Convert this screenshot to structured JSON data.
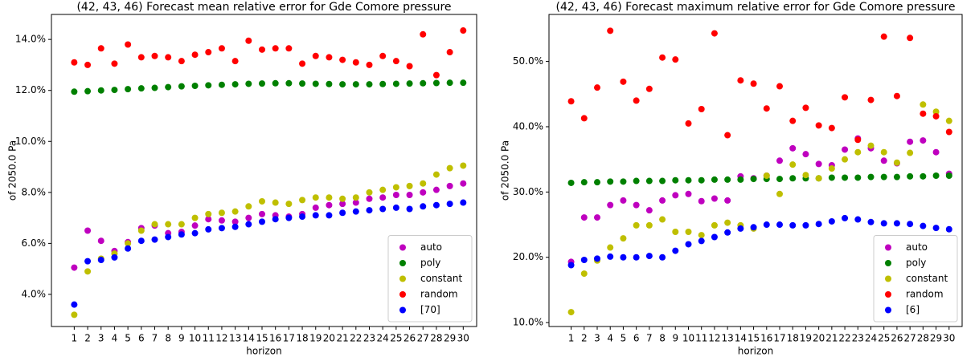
{
  "chart_data": [
    {
      "type": "scatter",
      "title": "(42, 43, 46) Forecast mean relative error for Gde Comore pressure",
      "xlabel": "horizon",
      "ylabel": "of 2050.0 Pa",
      "legend": "lower right",
      "x": [
        1,
        2,
        3,
        4,
        5,
        6,
        7,
        8,
        9,
        10,
        11,
        12,
        13,
        14,
        15,
        16,
        17,
        18,
        19,
        20,
        21,
        22,
        23,
        24,
        25,
        26,
        27,
        28,
        29,
        30
      ],
      "xlim": [
        -0.7,
        31
      ],
      "xticks": [
        1,
        2,
        3,
        4,
        5,
        6,
        7,
        8,
        9,
        10,
        11,
        12,
        13,
        14,
        15,
        16,
        17,
        18,
        19,
        20,
        21,
        22,
        23,
        24,
        25,
        26,
        27,
        28,
        29,
        30
      ],
      "ylim": [
        2.74,
        14.98
      ],
      "yticks": [
        {
          "value": 4,
          "label": "4.0%"
        },
        {
          "value": 6,
          "label": "6.0%"
        },
        {
          "value": 8,
          "label": "8.0%"
        },
        {
          "value": 10,
          "label": "10.0%"
        },
        {
          "value": 12,
          "label": "12.0%"
        },
        {
          "value": 14,
          "label": "14.0%"
        }
      ],
      "series": [
        {
          "name": "auto",
          "color": "#bf00bf",
          "values": [
            5.05,
            6.5,
            6.1,
            5.7,
            6.05,
            6.6,
            6.7,
            6.4,
            6.45,
            6.7,
            6.95,
            6.9,
            6.85,
            7.0,
            7.15,
            7.1,
            7.05,
            7.15,
            7.4,
            7.5,
            7.55,
            7.6,
            7.75,
            7.8,
            7.9,
            7.9,
            8.0,
            8.1,
            8.25,
            8.35
          ]
        },
        {
          "name": "poly",
          "color": "#008000",
          "values": [
            11.95,
            11.97,
            12.0,
            12.02,
            12.05,
            12.08,
            12.1,
            12.13,
            12.16,
            12.18,
            12.2,
            12.22,
            12.24,
            12.26,
            12.27,
            12.28,
            12.28,
            12.27,
            12.26,
            12.25,
            12.24,
            12.24,
            12.24,
            12.25,
            12.26,
            12.27,
            12.28,
            12.29,
            12.3,
            12.3
          ]
        },
        {
          "name": "constant",
          "color": "#bfbf00",
          "values": [
            3.2,
            4.9,
            5.4,
            5.6,
            6.0,
            6.5,
            6.75,
            6.75,
            6.75,
            7.0,
            7.15,
            7.2,
            7.25,
            7.45,
            7.65,
            7.6,
            7.55,
            7.7,
            7.8,
            7.8,
            7.75,
            7.8,
            8.0,
            8.1,
            8.2,
            8.25,
            8.35,
            8.7,
            8.95,
            9.05
          ]
        },
        {
          "name": "random",
          "color": "#ff0000",
          "values": [
            13.1,
            13.0,
            13.65,
            13.05,
            13.8,
            13.3,
            13.35,
            13.3,
            13.15,
            13.4,
            13.5,
            13.65,
            13.15,
            13.95,
            13.6,
            13.65,
            13.65,
            13.05,
            13.35,
            13.3,
            13.2,
            13.1,
            13.0,
            13.35,
            13.15,
            12.95,
            14.2,
            12.6,
            13.5,
            14.35
          ]
        },
        {
          "name": "[70]",
          "color": "#0000ff",
          "values": [
            3.6,
            5.3,
            5.35,
            5.45,
            5.8,
            6.1,
            6.15,
            6.25,
            6.35,
            6.4,
            6.55,
            6.6,
            6.65,
            6.75,
            6.85,
            6.95,
            7.0,
            7.05,
            7.1,
            7.1,
            7.2,
            7.25,
            7.3,
            7.35,
            7.4,
            7.35,
            7.45,
            7.5,
            7.55,
            7.6
          ]
        }
      ]
    },
    {
      "type": "scatter",
      "title": "(42, 43, 46) Forecast maximum relative error for Gde Comore pressure",
      "xlabel": "horizon",
      "ylabel": "of 2050.0 Pa",
      "legend": "lower right",
      "x": [
        1,
        2,
        3,
        4,
        5,
        6,
        7,
        8,
        9,
        10,
        11,
        12,
        13,
        14,
        15,
        16,
        17,
        18,
        19,
        20,
        21,
        22,
        23,
        24,
        25,
        26,
        27,
        28,
        29,
        30
      ],
      "xlim": [
        -0.7,
        31
      ],
      "xticks": [
        1,
        2,
        3,
        4,
        5,
        6,
        7,
        8,
        9,
        10,
        11,
        12,
        13,
        14,
        15,
        16,
        17,
        18,
        19,
        20,
        21,
        22,
        23,
        24,
        25,
        26,
        27,
        28,
        29,
        30
      ],
      "ylim": [
        9.4,
        57.2
      ],
      "yticks": [
        {
          "value": 10,
          "label": "10.0%"
        },
        {
          "value": 20,
          "label": "20.0%"
        },
        {
          "value": 30,
          "label": "30.0%"
        },
        {
          "value": 40,
          "label": "40.0%"
        },
        {
          "value": 50,
          "label": "50.0%"
        }
      ],
      "series": [
        {
          "name": "auto",
          "color": "#bf00bf",
          "values": [
            19.3,
            26.1,
            26.1,
            28.0,
            28.7,
            28.0,
            27.2,
            28.7,
            29.5,
            29.7,
            28.6,
            29.0,
            28.7,
            32.4,
            32.1,
            32.5,
            34.8,
            36.7,
            35.8,
            34.3,
            34.1,
            36.5,
            38.2,
            36.7,
            34.8,
            34.4,
            37.7,
            37.9,
            36.1,
            32.8
          ]
        },
        {
          "name": "poly",
          "color": "#008000",
          "values": [
            31.4,
            31.5,
            31.5,
            31.6,
            31.6,
            31.7,
            31.7,
            31.7,
            31.8,
            31.8,
            31.8,
            31.9,
            31.9,
            31.9,
            32.0,
            32.0,
            32.0,
            32.1,
            32.1,
            32.1,
            32.2,
            32.2,
            32.2,
            32.3,
            32.3,
            32.3,
            32.4,
            32.4,
            32.5,
            32.5
          ]
        },
        {
          "name": "constant",
          "color": "#bfbf00",
          "values": [
            11.6,
            17.5,
            19.5,
            21.5,
            22.9,
            24.9,
            24.9,
            25.8,
            23.9,
            23.9,
            23.4,
            24.9,
            25.3,
            24.9,
            24.4,
            32.5,
            29.7,
            34.2,
            32.6,
            32.1,
            33.6,
            35.0,
            36.1,
            37.1,
            36.1,
            34.5,
            36.0,
            43.4,
            42.3,
            40.9
          ]
        },
        {
          "name": "random",
          "color": "#ff0000",
          "values": [
            43.9,
            41.3,
            46.0,
            54.7,
            46.9,
            44.0,
            45.8,
            50.6,
            50.3,
            40.5,
            42.7,
            54.3,
            38.7,
            47.1,
            46.6,
            42.8,
            46.2,
            40.9,
            42.9,
            40.2,
            39.8,
            44.5,
            38.0,
            44.1,
            53.8,
            44.7,
            53.6,
            42.0,
            41.6,
            39.2
          ]
        },
        {
          "name": "[6]",
          "color": "#0000ff",
          "values": [
            18.8,
            19.6,
            19.8,
            20.1,
            20.0,
            20.0,
            20.2,
            20.0,
            21.0,
            22.0,
            22.5,
            23.1,
            23.8,
            24.4,
            24.6,
            25.0,
            25.0,
            24.9,
            24.9,
            25.1,
            25.5,
            26.0,
            25.8,
            25.4,
            25.2,
            25.2,
            25.1,
            24.8,
            24.5,
            24.3
          ]
        }
      ]
    }
  ]
}
